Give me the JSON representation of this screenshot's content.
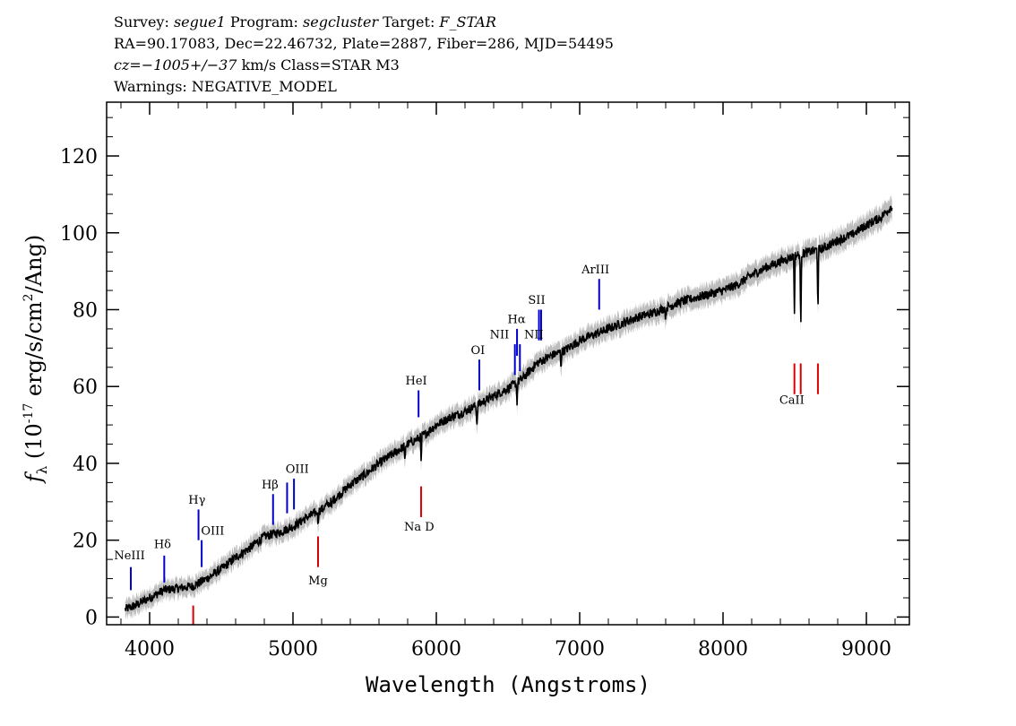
{
  "header": {
    "line1": {
      "survey_label": "Survey: ",
      "survey": "segue1",
      "program_label": " Program: ",
      "program": "segcluster",
      "target_label": " Target: ",
      "target": "F_STAR"
    },
    "line2": "RA=90.17083, Dec=22.46732, Plate=2887, Fiber=286, MJD=54495",
    "line3": {
      "cz_prefix": "cz",
      "cz_value": "=−1005+/−37",
      "rest": " km/s Class=STAR M3"
    },
    "line4": "Warnings: NEGATIVE_MODEL"
  },
  "chart_data": {
    "type": "line",
    "xlabel": "Wavelength (Angstroms)",
    "ylabel": "f_λ (10^-17 erg/s/cm^2/Ang)",
    "xlim": [
      3700,
      9300
    ],
    "ylim": [
      -2,
      134
    ],
    "xticks": [
      4000,
      5000,
      6000,
      7000,
      8000,
      9000
    ],
    "yticks": [
      0,
      20,
      40,
      60,
      80,
      100,
      120
    ],
    "colors": {
      "spectrum": "#000000",
      "error_band": "#bdbdbd",
      "emission": "#0000cc",
      "absorption": "#dd0000"
    },
    "series": [
      {
        "x": [
          3830,
          3900,
          4000,
          4100,
          4200,
          4300,
          4400,
          4500,
          4600,
          4700,
          4800,
          4900,
          5000,
          5100,
          5200,
          5300,
          5400,
          5500,
          5600,
          5700,
          5800,
          5900,
          6000,
          6100,
          6200,
          6300,
          6400,
          6500,
          6600,
          6700,
          6800,
          6900,
          7000,
          7100,
          7200,
          7300,
          7400,
          7500,
          7600,
          7700,
          7800,
          7900,
          8000,
          8100,
          8200,
          8300,
          8400,
          8500,
          8600,
          8700,
          8800,
          8900,
          9000,
          9100,
          9180
        ],
        "y": [
          2,
          3,
          5,
          7,
          7.5,
          8,
          10,
          12.5,
          15.5,
          18,
          21,
          22,
          23.5,
          26,
          28,
          31,
          34.5,
          37,
          40,
          42.5,
          45,
          47,
          50,
          52,
          53.5,
          55.5,
          57.5,
          59.5,
          62,
          66,
          68,
          69.5,
          72,
          73.5,
          75,
          76.5,
          78,
          79,
          80.5,
          82,
          83,
          84,
          85,
          86.5,
          89,
          91,
          92.5,
          94,
          95,
          96,
          98,
          99.5,
          102,
          104,
          107
        ]
      }
    ],
    "emission_lines": [
      {
        "label": "NeIII",
        "wavelength": 3869,
        "flux": [
          7,
          13
        ]
      },
      {
        "label": "Hδ",
        "wavelength": 4102,
        "flux": [
          9,
          16
        ]
      },
      {
        "label": "Hγ",
        "wavelength": 4341,
        "flux": [
          20,
          28
        ]
      },
      {
        "label": "OIII",
        "wavelength": 4363,
        "flux": [
          13,
          20
        ]
      },
      {
        "label": "Hβ",
        "wavelength": 4861,
        "flux": [
          24,
          32
        ]
      },
      {
        "label": "OIII",
        "wavelength": 4959,
        "flux": [
          27,
          35
        ]
      },
      {
        "label": "OIII",
        "wavelength": 5007,
        "flux": [
          28,
          36
        ]
      },
      {
        "label": "HeI",
        "wavelength": 5876,
        "flux": [
          52,
          59
        ]
      },
      {
        "label": "OI",
        "wavelength": 6300,
        "flux": [
          59,
          67
        ]
      },
      {
        "label": "NII",
        "wavelength": 6548,
        "flux": [
          63,
          71
        ]
      },
      {
        "label": "Hα",
        "wavelength": 6563,
        "flux": [
          68,
          75
        ]
      },
      {
        "label": "NII",
        "wavelength": 6583,
        "flux": [
          64,
          71
        ]
      },
      {
        "label": "SII",
        "wavelength": 6716,
        "flux": [
          72,
          80
        ]
      },
      {
        "label": "SII",
        "wavelength": 6731,
        "flux": [
          72,
          80
        ]
      },
      {
        "label": "ArIII",
        "wavelength": 7136,
        "flux": [
          80,
          88
        ]
      }
    ],
    "absorption_lines": [
      {
        "label": "",
        "wavelength": 4304,
        "flux": [
          -2,
          3
        ]
      },
      {
        "label": "Mg",
        "wavelength": 5175,
        "flux": [
          13,
          21
        ]
      },
      {
        "label": "Na D",
        "wavelength": 5894,
        "flux": [
          26,
          34
        ]
      },
      {
        "label": "CaII",
        "wavelength": 8498,
        "flux": [
          58,
          66
        ]
      },
      {
        "label": "CaII",
        "wavelength": 8542,
        "flux": [
          58,
          66
        ]
      },
      {
        "label": "CaII",
        "wavelength": 8662,
        "flux": [
          58,
          66
        ]
      }
    ],
    "line_labels": [
      {
        "text": "NeIII",
        "x": 3860,
        "y": 15,
        "anchor": "middle"
      },
      {
        "text": "Hδ",
        "x": 4090,
        "y": 18,
        "anchor": "middle"
      },
      {
        "text": "Hγ",
        "x": 4330,
        "y": 29.5,
        "anchor": "middle"
      },
      {
        "text": "OIII",
        "x": 4440,
        "y": 21.5,
        "anchor": "middle"
      },
      {
        "text": "Hβ",
        "x": 4840,
        "y": 33.5,
        "anchor": "middle"
      },
      {
        "text": "OIII",
        "x": 5030,
        "y": 37.5,
        "anchor": "middle"
      },
      {
        "text": "Mg",
        "x": 5175,
        "y": 8.5,
        "anchor": "middle"
      },
      {
        "text": "HeI",
        "x": 5860,
        "y": 60.5,
        "anchor": "middle"
      },
      {
        "text": "Na  D",
        "x": 5880,
        "y": 22.5,
        "anchor": "middle"
      },
      {
        "text": "OI",
        "x": 6290,
        "y": 68.5,
        "anchor": "middle"
      },
      {
        "text": "NII",
        "x": 6440,
        "y": 72.5,
        "anchor": "middle"
      },
      {
        "text": "Hα",
        "x": 6560,
        "y": 76.5,
        "anchor": "middle"
      },
      {
        "text": "NII",
        "x": 6680,
        "y": 72.5,
        "anchor": "middle"
      },
      {
        "text": "SII",
        "x": 6700,
        "y": 81.5,
        "anchor": "middle"
      },
      {
        "text": "ArIII",
        "x": 7110,
        "y": 89.5,
        "anchor": "middle"
      },
      {
        "text": "CaII",
        "x": 8480,
        "y": 55.5,
        "anchor": "middle"
      }
    ]
  }
}
